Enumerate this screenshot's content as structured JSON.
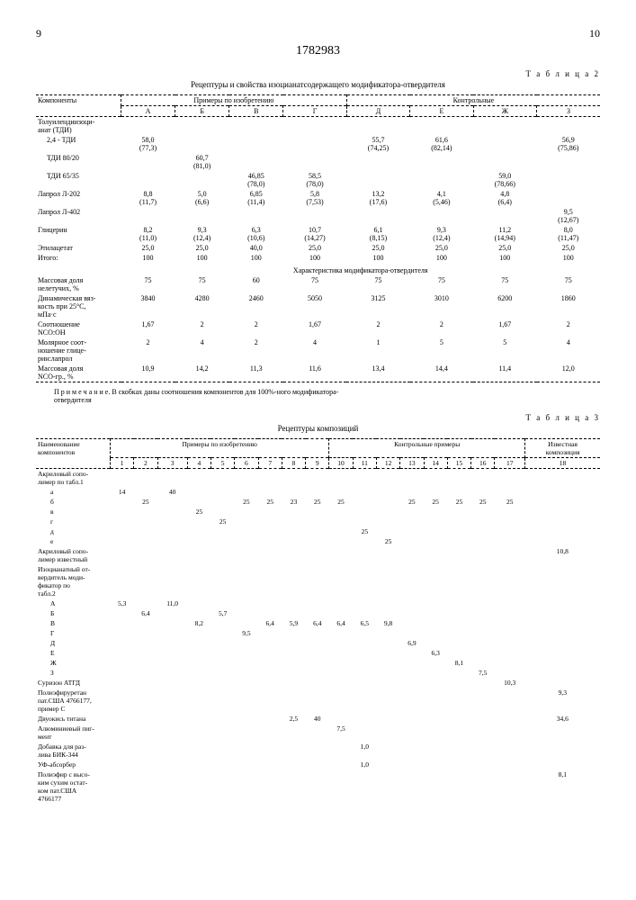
{
  "page_left": "9",
  "doc_number": "1782983",
  "page_right": "10",
  "table2": {
    "label": "Т а б л и ц а 2",
    "title": "Рецептуры и свойства изоцианатсодержащего модификатора-отвердителя",
    "hdr_comp": "Компоненты",
    "hdr_inv": "Примеры по изобретению",
    "hdr_ctrl": "Контрольные",
    "cols": [
      "А",
      "Б",
      "В",
      "Г",
      "Д",
      "Е",
      "Ж",
      "З"
    ],
    "r1_label": "Толуилендиизоци-\nанат (ТДИ)",
    "r2_label": "2,4 - ТДИ",
    "r2": [
      "58,0\n(77,3)",
      "",
      "",
      "",
      "55,7\n(74,25)",
      "61,6\n(82,14)",
      "",
      "56,9\n(75,86)"
    ],
    "r3_label": "ТДИ 80/20",
    "r3": [
      "",
      "60,7\n(81,0)",
      "",
      "",
      "",
      "",
      "",
      ""
    ],
    "r4_label": "ТДИ 65/35",
    "r4": [
      "",
      "",
      "46,85\n(78,0)",
      "58,5\n(78,0)",
      "",
      "",
      "59,0\n(78,66)",
      ""
    ],
    "r5_label": "Лапрол Л-202",
    "r5": [
      "8,8\n(11,7)",
      "5,0\n(6,6)",
      "6,85\n(11,4)",
      "5,8\n(7,53)",
      "13,2\n(17,6)",
      "4,1\n(5,46)",
      "4,8\n(6,4)",
      ""
    ],
    "r6_label": "Лапрол Л-402",
    "r6": [
      "",
      "",
      "",
      "",
      "",
      "",
      "",
      "9,5\n(12,67)"
    ],
    "r7_label": "Глицерин",
    "r7": [
      "8,2\n(11,0)",
      "9,3\n(12,4)",
      "6,3\n(10,6)",
      "10,7\n(14,27)",
      "6,1\n(8,15)",
      "9,3\n(12,4)",
      "11,2\n(14,94)",
      "8,0\n(11,47)"
    ],
    "r8_label": "Этилацетат",
    "r8": [
      "25,0",
      "25,0",
      "40,0",
      "25,0",
      "25,0",
      "25,0",
      "25,0",
      "25,0"
    ],
    "r9_label": "Итого:",
    "r9": [
      "100",
      "100",
      "100",
      "100",
      "100",
      "100",
      "100",
      "100"
    ],
    "sect_title": "Характеристика модификатора-отвердителя",
    "r10_label": "Массовая доля\nнелетучих, %",
    "r10": [
      "75",
      "75",
      "60",
      "75",
      "75",
      "75",
      "75",
      "75"
    ],
    "r11_label": "Динамическая вяз-\nкость при 25°С,\nмПа·с",
    "r11": [
      "3840",
      "4280",
      "2460",
      "5050",
      "3125",
      "3010",
      "6200",
      "1860"
    ],
    "r12_label": "Соотношение\nNCO:OH",
    "r12": [
      "1,67",
      "2",
      "2",
      "1,67",
      "2",
      "2",
      "1,67",
      "2"
    ],
    "r13_label": "Молярное соот-\nношение глице-\nрин:лапрол",
    "r13": [
      "2",
      "4",
      "2",
      "4",
      "1",
      "5",
      "5",
      "4"
    ],
    "r14_label": "Массовая доля\nNCO-гр., %",
    "r14": [
      "10,9",
      "14,2",
      "11,3",
      "11,6",
      "13,4",
      "14,4",
      "11,4",
      "12,0"
    ],
    "note": "П р и м е ч а н и е.  В скобках даны соотношения компонентов для 100%-ного модификатора-\nотвердителя"
  },
  "table3": {
    "label": "Т а б л и ц а 3",
    "title": "Рецептуры композиций",
    "hdr_name": "Наименование\nкомпонентов",
    "hdr_inv": "Примеры по изобретению",
    "hdr_ctrl": "Контрольные примеры",
    "hdr_known": "Известная\nкомпозиция",
    "cols": [
      "1",
      "2",
      "3",
      "4",
      "5",
      "6",
      "7",
      "8",
      "9",
      "10",
      "11",
      "12",
      "13",
      "14",
      "15",
      "16",
      "17",
      "18"
    ],
    "g1_label": "Акриловый сопо-\nлимер по табл.1",
    "g1_rows": {
      "а": [
        "14",
        "",
        "40",
        "",
        "",
        "",
        "",
        "",
        "",
        "",
        "",
        "",
        "",
        "",
        "",
        "",
        "",
        ""
      ],
      "б": [
        "",
        "25",
        "",
        "",
        "",
        "25",
        "25",
        "23",
        "25",
        "25",
        "",
        "",
        "25",
        "25",
        "25",
        "25",
        "25",
        ""
      ],
      "в": [
        "",
        "",
        "",
        "25",
        "",
        "",
        "",
        "",
        "",
        "",
        "",
        "",
        "",
        "",
        "",
        "",
        "",
        ""
      ],
      "г": [
        "",
        "",
        "",
        "",
        "25",
        "",
        "",
        "",
        "",
        "",
        "",
        "",
        "",
        "",
        "",
        "",
        "",
        ""
      ],
      "д": [
        "",
        "",
        "",
        "",
        "",
        "",
        "",
        "",
        "",
        "",
        "25",
        "",
        "",
        "",
        "",
        "",
        "",
        ""
      ],
      "е": [
        "",
        "",
        "",
        "",
        "",
        "",
        "",
        "",
        "",
        "",
        "",
        "25",
        "",
        "",
        "",
        "",
        "",
        ""
      ]
    },
    "g2_label": "Акриловый сопо-\nлимер известный",
    "g2": [
      "",
      "",
      "",
      "",
      "",
      "",
      "",
      "",
      "",
      "",
      "",
      "",
      "",
      "",
      "",
      "",
      "",
      "10,8"
    ],
    "g3_label": "Изоцианатный от-\nвердитель моди-\nфикатор по\nтабл.2",
    "g3_rows": {
      "А": [
        "5,3",
        "",
        "11,0",
        "",
        "",
        "",
        "",
        "",
        "",
        "",
        "",
        "",
        "",
        "",
        "",
        "",
        "",
        ""
      ],
      "Б": [
        "",
        "6,4",
        "",
        "",
        "5,7",
        "",
        "",
        "",
        "",
        "",
        "",
        "",
        "",
        "",
        "",
        "",
        "",
        ""
      ],
      "В": [
        "",
        "",
        "",
        "8,2",
        "",
        "",
        "6,4",
        "5,9",
        "6,4",
        "6,4",
        "6,5",
        "9,8",
        "",
        "",
        "",
        "",
        "",
        ""
      ],
      "Г": [
        "",
        "",
        "",
        "",
        "",
        "9,5",
        "",
        "",
        "",
        "",
        "",
        "",
        "",
        "",
        "",
        "",
        "",
        ""
      ],
      "Д": [
        "",
        "",
        "",
        "",
        "",
        "",
        "",
        "",
        "",
        "",
        "",
        "",
        "6,9",
        "",
        "",
        "",
        "",
        ""
      ],
      "Е": [
        "",
        "",
        "",
        "",
        "",
        "",
        "",
        "",
        "",
        "",
        "",
        "",
        "",
        "6,3",
        "",
        "",
        "",
        ""
      ],
      "Ж": [
        "",
        "",
        "",
        "",
        "",
        "",
        "",
        "",
        "",
        "",
        "",
        "",
        "",
        "",
        "8,1",
        "",
        "",
        ""
      ],
      "З": [
        "",
        "",
        "",
        "",
        "",
        "",
        "",
        "",
        "",
        "",
        "",
        "",
        "",
        "",
        "",
        "7,5",
        "",
        ""
      ]
    },
    "r4_label": "Суризон АТГД",
    "r4": [
      "",
      "",
      "",
      "",
      "",
      "",
      "",
      "",
      "",
      "",
      "",
      "",
      "",
      "",
      "",
      "",
      "10,3",
      ""
    ],
    "r5_label": "Полиэфируретан\nпат.США 4766177,\nпример С",
    "r5": [
      "",
      "",
      "",
      "",
      "",
      "",
      "",
      "",
      "",
      "",
      "",
      "",
      "",
      "",
      "",
      "",
      "",
      "9,3"
    ],
    "r6_label": "Двуокись титана",
    "r6": [
      "",
      "",
      "",
      "",
      "",
      "",
      "",
      "2,5",
      "40",
      "",
      "",
      "",
      "",
      "",
      "",
      "",
      "",
      "34,6"
    ],
    "r7_label": "Алюминиевый пиг-\nмент",
    "r7": [
      "",
      "",
      "",
      "",
      "",
      "",
      "",
      "",
      "",
      "7,5",
      "",
      "",
      "",
      "",
      "",
      "",
      "",
      ""
    ],
    "r8_label": "Добавка для раз-\nлива БИК-344",
    "r8": [
      "",
      "",
      "",
      "",
      "",
      "",
      "",
      "",
      "",
      "",
      "1,0",
      "",
      "",
      "",
      "",
      "",
      "",
      ""
    ],
    "r9_label": "УФ-абсорбер",
    "r9": [
      "",
      "",
      "",
      "",
      "",
      "",
      "",
      "",
      "",
      "",
      "1,0",
      "",
      "",
      "",
      "",
      "",
      "",
      ""
    ],
    "r10_label": "Полиэфир с высо-\nким сухим остат-\nком пат.США\n4766177",
    "r10": [
      "",
      "",
      "",
      "",
      "",
      "",
      "",
      "",
      "",
      "",
      "",
      "",
      "",
      "",
      "",
      "",
      "",
      "8,1"
    ]
  }
}
